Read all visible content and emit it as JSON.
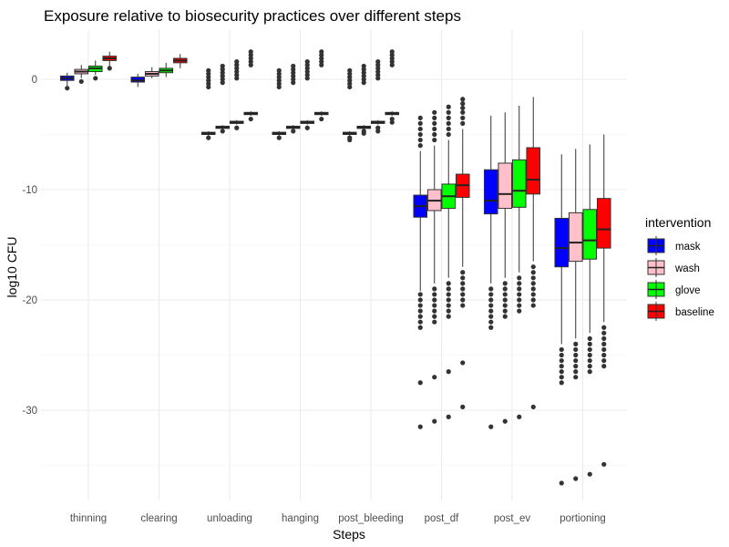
{
  "chart_data": {
    "type": "boxplot",
    "title": "Exposure relative to biosecurity practices over different steps",
    "xlabel": "Steps",
    "ylabel": "log10 CFU",
    "ylim": [
      -37.5,
      3.0
    ],
    "yticks": [
      0,
      -10,
      -20,
      -30
    ],
    "grid": true,
    "legend": {
      "title": "intervention",
      "position": "right"
    },
    "categories": [
      "thinning",
      "clearing",
      "unloading",
      "hanging",
      "post_bleeding",
      "post_df",
      "post_ev",
      "portioning"
    ],
    "series": [
      {
        "name": "mask",
        "color": "#0000ff",
        "boxes": [
          {
            "min": -0.6,
            "q1": -0.1,
            "median": 0.1,
            "q3": 0.3,
            "max": 0.6,
            "outliers": [
              -0.8
            ]
          },
          {
            "min": -0.7,
            "q1": -0.25,
            "median": -0.1,
            "q3": 0.2,
            "max": 0.5,
            "outliers": []
          },
          {
            "min": -5.1,
            "q1": -5.0,
            "median": -4.9,
            "q3": -4.8,
            "max": -4.7,
            "outliers": [
              -5.3,
              0.8,
              0.5,
              0.2,
              -0.1,
              -0.4,
              -0.7
            ]
          },
          {
            "min": -5.1,
            "q1": -5.0,
            "median": -4.9,
            "q3": -4.8,
            "max": -4.7,
            "outliers": [
              -5.3,
              0.8,
              0.5,
              0.2,
              -0.1,
              -0.4,
              -0.7
            ]
          },
          {
            "min": -5.1,
            "q1": -5.0,
            "median": -4.9,
            "q3": -4.8,
            "max": -4.7,
            "outliers": [
              -5.5,
              -5.3,
              0.8,
              0.5,
              0.2,
              -0.1,
              -0.4,
              -0.7
            ]
          },
          {
            "min": -19.2,
            "q1": -12.5,
            "median": -11.5,
            "q3": -10.5,
            "max": -6.5,
            "outliers": [
              -3.5,
              -4.0,
              -4.5,
              -5.0,
              -5.5,
              -6.0,
              -19.5,
              -20.0,
              -20.5,
              -21.0,
              -21.5,
              -22.0,
              -22.5,
              -27.5,
              -31.5
            ]
          },
          {
            "min": -18.5,
            "q1": -12.2,
            "median": -11.0,
            "q3": -8.2,
            "max": -3.3,
            "outliers": [
              -19.0,
              -19.5,
              -20.0,
              -20.5,
              -21.0,
              -21.5,
              -22.0,
              -22.5,
              -31.5
            ]
          },
          {
            "min": -24.0,
            "q1": -17.0,
            "median": -15.3,
            "q3": -12.6,
            "max": -6.8,
            "outliers": [
              -24.5,
              -25.0,
              -25.5,
              -26.0,
              -26.5,
              -27.0,
              -27.5,
              -36.6
            ]
          }
        ]
      },
      {
        "name": "wash",
        "color": "#ffc0cb",
        "boxes": [
          {
            "min": 0.1,
            "q1": 0.5,
            "median": 0.7,
            "q3": 0.9,
            "max": 1.3,
            "outliers": [
              -0.2
            ]
          },
          {
            "min": 0.1,
            "q1": 0.3,
            "median": 0.5,
            "q3": 0.7,
            "max": 1.1,
            "outliers": []
          },
          {
            "min": -4.55,
            "q1": -4.45,
            "median": -4.35,
            "q3": -4.25,
            "max": -4.15,
            "outliers": [
              -4.7,
              1.2,
              0.9,
              0.6,
              0.3,
              0.0,
              -0.3
            ]
          },
          {
            "min": -4.55,
            "q1": -4.45,
            "median": -4.35,
            "q3": -4.25,
            "max": -4.15,
            "outliers": [
              -4.7,
              1.2,
              0.9,
              0.6,
              0.3,
              0.0,
              -0.3
            ]
          },
          {
            "min": -4.55,
            "q1": -4.45,
            "median": -4.35,
            "q3": -4.25,
            "max": -4.15,
            "outliers": [
              -4.9,
              -4.7,
              1.2,
              0.9,
              0.6,
              0.3,
              0.0,
              -0.3
            ]
          },
          {
            "min": -18.5,
            "q1": -11.9,
            "median": -11.0,
            "q3": -10.0,
            "max": -6.0,
            "outliers": [
              -3.0,
              -3.5,
              -4.0,
              -4.5,
              -5.0,
              -5.5,
              -19.0,
              -19.5,
              -20.0,
              -20.5,
              -21.0,
              -21.5,
              -22.0,
              -27.0,
              -31.0
            ]
          },
          {
            "min": -18.0,
            "q1": -11.7,
            "median": -10.4,
            "q3": -7.6,
            "max": -3.0,
            "outliers": [
              -18.5,
              -19.0,
              -19.5,
              -20.0,
              -20.5,
              -21.0,
              -21.5,
              -31.0
            ]
          },
          {
            "min": -23.5,
            "q1": -16.5,
            "median": -14.8,
            "q3": -12.1,
            "max": -6.3,
            "outliers": [
              -24.0,
              -24.5,
              -25.0,
              -25.5,
              -26.0,
              -26.5,
              -27.0,
              -36.2
            ]
          }
        ]
      },
      {
        "name": "glove",
        "color": "#00ff00",
        "boxes": [
          {
            "min": 0.4,
            "q1": 0.7,
            "median": 1.0,
            "q3": 1.2,
            "max": 1.7,
            "outliers": [
              0.1
            ]
          },
          {
            "min": 0.2,
            "q1": 0.6,
            "median": 0.8,
            "q3": 1.0,
            "max": 1.5,
            "outliers": []
          },
          {
            "min": -4.1,
            "q1": -4.0,
            "median": -3.9,
            "q3": -3.8,
            "max": -3.7,
            "outliers": [
              -4.4,
              1.6,
              1.3,
              1.0,
              0.7,
              0.4,
              0.1
            ]
          },
          {
            "min": -4.1,
            "q1": -4.0,
            "median": -3.9,
            "q3": -3.8,
            "max": -3.7,
            "outliers": [
              -4.4,
              1.6,
              1.3,
              1.0,
              0.7,
              0.4,
              0.1
            ]
          },
          {
            "min": -4.1,
            "q1": -4.0,
            "median": -3.9,
            "q3": -3.8,
            "max": -3.7,
            "outliers": [
              -4.7,
              -4.4,
              1.6,
              1.3,
              1.0,
              0.7,
              0.4,
              0.1
            ]
          },
          {
            "min": -18.0,
            "q1": -11.7,
            "median": -10.6,
            "q3": -9.5,
            "max": -5.5,
            "outliers": [
              -2.5,
              -3.0,
              -3.5,
              -4.0,
              -4.5,
              -5.0,
              -18.5,
              -19.0,
              -19.5,
              -20.0,
              -20.5,
              -21.0,
              -21.5,
              -26.5,
              -30.6
            ]
          },
          {
            "min": -17.5,
            "q1": -11.6,
            "median": -10.1,
            "q3": -7.3,
            "max": -2.4,
            "outliers": [
              -18.0,
              -18.5,
              -19.0,
              -19.5,
              -20.0,
              -20.5,
              -21.0,
              -30.6
            ]
          },
          {
            "min": -23.0,
            "q1": -16.3,
            "median": -14.6,
            "q3": -11.8,
            "max": -5.9,
            "outliers": [
              -23.5,
              -24.0,
              -24.5,
              -25.0,
              -25.5,
              -26.0,
              -26.5,
              -35.8
            ]
          }
        ]
      },
      {
        "name": "baseline",
        "color": "#ff0000",
        "boxes": [
          {
            "min": 1.2,
            "q1": 1.7,
            "median": 1.9,
            "q3": 2.1,
            "max": 2.5,
            "outliers": [
              1.0
            ]
          },
          {
            "min": 1.0,
            "q1": 1.5,
            "median": 1.7,
            "q3": 1.9,
            "max": 2.3,
            "outliers": []
          },
          {
            "min": -3.3,
            "q1": -3.2,
            "median": -3.1,
            "q3": -3.0,
            "max": -2.9,
            "outliers": [
              -3.6,
              2.5,
              2.2,
              1.9,
              1.6,
              1.3
            ]
          },
          {
            "min": -3.3,
            "q1": -3.2,
            "median": -3.1,
            "q3": -3.0,
            "max": -2.9,
            "outliers": [
              -3.6,
              2.5,
              2.2,
              1.9,
              1.6,
              1.3
            ]
          },
          {
            "min": -3.3,
            "q1": -3.2,
            "median": -3.1,
            "q3": -3.0,
            "max": -2.9,
            "outliers": [
              -3.9,
              -3.6,
              2.5,
              2.2,
              1.9,
              1.6,
              1.3
            ]
          },
          {
            "min": -17.0,
            "q1": -10.7,
            "median": -9.6,
            "q3": -8.6,
            "max": -4.5,
            "outliers": [
              -1.8,
              -2.2,
              -2.6,
              -3.0,
              -3.5,
              -4.0,
              -17.5,
              -18.0,
              -18.5,
              -19.0,
              -19.5,
              -20.0,
              -20.5,
              -25.7,
              -29.7
            ]
          },
          {
            "min": -16.5,
            "q1": -10.4,
            "median": -9.1,
            "q3": -6.2,
            "max": -1.6,
            "outliers": [
              -17.0,
              -17.5,
              -18.0,
              -18.5,
              -19.0,
              -19.5,
              -20.0,
              -20.5,
              -29.7
            ]
          },
          {
            "min": -22.0,
            "q1": -15.3,
            "median": -13.6,
            "q3": -10.8,
            "max": -5.0,
            "outliers": [
              -22.5,
              -23.0,
              -23.5,
              -24.0,
              -24.5,
              -25.0,
              -25.5,
              -26.0,
              -34.9
            ]
          }
        ]
      }
    ]
  }
}
